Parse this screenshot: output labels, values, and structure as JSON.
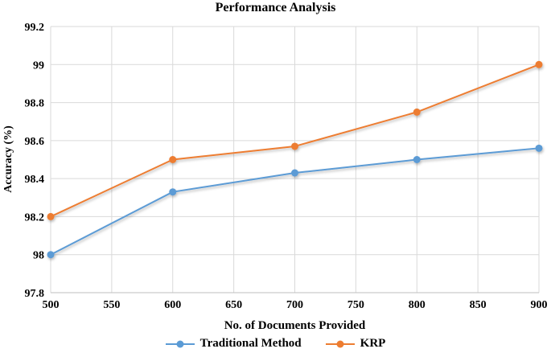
{
  "chart_data": {
    "type": "line",
    "title": "Performance Analysis",
    "xlabel": "No. of Documents Provided",
    "ylabel": "Accuracy (%)",
    "x": [
      500,
      600,
      700,
      800,
      900
    ],
    "xlim": [
      500,
      900
    ],
    "ylim": [
      97.8,
      99.2
    ],
    "xticks": [
      500,
      550,
      600,
      650,
      700,
      750,
      800,
      850,
      900
    ],
    "yticks": [
      97.8,
      98,
      98.2,
      98.4,
      98.6,
      98.8,
      99,
      99.2
    ],
    "grid": true,
    "legend_position": "bottom-center",
    "series": [
      {
        "name": "Traditional Method",
        "color": "#5B9BD5",
        "values": [
          98.0,
          98.33,
          98.43,
          98.5,
          98.56
        ]
      },
      {
        "name": "KRP",
        "color": "#ED7D31",
        "values": [
          98.2,
          98.5,
          98.57,
          98.75,
          99.0
        ]
      }
    ],
    "colors": {
      "gridline": "#D9D9D9",
      "axis_line": "#BFBFBF",
      "text": "#000000",
      "background": "#FFFFFF"
    }
  }
}
